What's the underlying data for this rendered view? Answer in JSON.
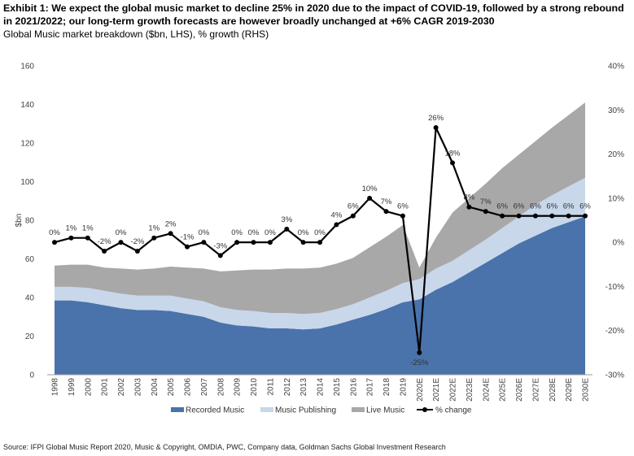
{
  "header": {
    "title": "Exhibit 1: We expect the global music market to decline 25% in 2020 due to the impact of COVID-19, followed by a strong rebound in 2021/2022; our long-term growth forecasts are however broadly unchanged at +6% CAGR 2019-2030",
    "subtitle": "Global Music market breakdown ($bn, LHS), % growth (RHS)"
  },
  "source": "Source: IFPI Global Music Report 2020, Music & Copyright, OMDIA, PWC, Company data, Goldman Sachs Global Investment Research",
  "chart_data": {
    "type": "area",
    "stacked": true,
    "categories": [
      "1998",
      "1999",
      "2000",
      "2001",
      "2002",
      "2003",
      "2004",
      "2005",
      "2006",
      "2007",
      "2008",
      "2009",
      "2010",
      "2011",
      "2012",
      "2013",
      "2014",
      "2015",
      "2016",
      "2017",
      "2018",
      "2019",
      "2020E",
      "2021E",
      "2022E",
      "2023E",
      "2024E",
      "2025E",
      "2026E",
      "2027E",
      "2028E",
      "2029E",
      "2030E"
    ],
    "ylabel": "$bn",
    "ylim": [
      0,
      160
    ],
    "yticks": [
      0,
      20,
      40,
      60,
      80,
      100,
      120,
      140,
      160
    ],
    "y2lim": [
      -30,
      40
    ],
    "y2ticks": [
      "-30%",
      "-20%",
      "-10%",
      "0%",
      "10%",
      "20%",
      "30%",
      "40%"
    ],
    "series": [
      {
        "name": "Recorded Music",
        "kind": "area",
        "color": "#4a72ab",
        "values": [
          38.5,
          38.5,
          37.5,
          36,
          34.5,
          33.5,
          33.5,
          33,
          31.5,
          30,
          27,
          25.5,
          25,
          24,
          24,
          23.5,
          24,
          26,
          28.5,
          31,
          34,
          37.5,
          39,
          44,
          48,
          53,
          58,
          63,
          68,
          72,
          76,
          79,
          82
        ]
      },
      {
        "name": "Music  Publishing",
        "kind": "area",
        "color": "#c8d7ea",
        "values": [
          7,
          7,
          7.5,
          7.5,
          7.5,
          7.5,
          7.5,
          8,
          8,
          8,
          8,
          8,
          8,
          8,
          8,
          8,
          8,
          8,
          8,
          9,
          9.5,
          10,
          10.5,
          11,
          11,
          11.5,
          12,
          13,
          14,
          16,
          17,
          18.5,
          20
        ]
      },
      {
        "name": "Live Music",
        "kind": "area",
        "color": "#a8a8a8",
        "values": [
          11,
          11.5,
          12,
          12,
          13,
          13.5,
          14,
          15,
          16,
          17,
          18.5,
          20.5,
          21.5,
          22.5,
          23,
          23.5,
          23.5,
          23.5,
          24,
          26,
          28,
          30,
          6,
          16,
          25,
          27,
          29,
          31,
          32,
          33,
          35,
          37,
          39
        ]
      },
      {
        "name": "% change",
        "kind": "line",
        "axis": "right",
        "color": "#000000",
        "values": [
          0,
          1,
          1,
          -2,
          0,
          -2,
          1,
          2,
          -1,
          0,
          -3,
          0,
          0,
          0,
          3,
          0,
          0,
          4,
          6,
          10,
          7,
          6,
          -25,
          26,
          18,
          8,
          7,
          6,
          6,
          6,
          6,
          6,
          6
        ],
        "labels": [
          "0%",
          "1%",
          "1%",
          "-2%",
          "0%",
          "-2%",
          "1%",
          "2%",
          "-1%",
          "0%",
          "-3%",
          "0%",
          "0%",
          "0%",
          "3%",
          "0%",
          "0%",
          "4%",
          "6%",
          "10%",
          "7%",
          "6%",
          "-25%",
          "26%",
          "18%",
          "8%",
          "7%",
          "6%",
          "6%",
          "6%",
          "6%",
          "6%",
          "6%"
        ]
      }
    ],
    "legend_position": "bottom",
    "grid": false
  }
}
